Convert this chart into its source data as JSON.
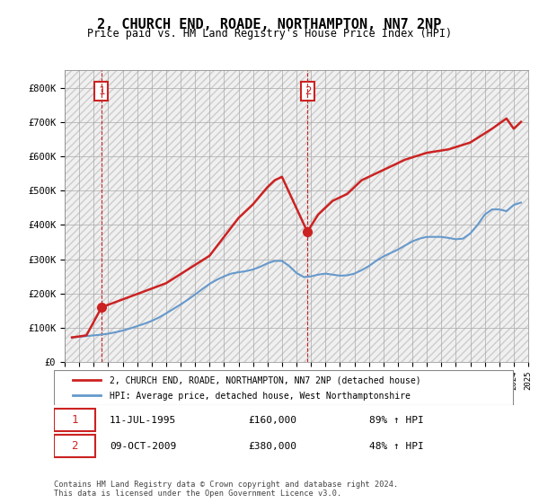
{
  "title": "2, CHURCH END, ROADE, NORTHAMPTON, NN7 2NP",
  "subtitle": "Price paid vs. HM Land Registry's House Price Index (HPI)",
  "ylabel": "",
  "ylim": [
    0,
    850000
  ],
  "yticks": [
    0,
    100000,
    200000,
    300000,
    400000,
    500000,
    600000,
    700000,
    800000
  ],
  "ytick_labels": [
    "£0",
    "£100K",
    "£200K",
    "£300K",
    "£400K",
    "£500K",
    "£600K",
    "£700K",
    "£800K"
  ],
  "hpi_color": "#6699cc",
  "price_color": "#cc2222",
  "bg_color": "#f5f5f5",
  "grid_color": "#cccccc",
  "transaction1_date": "1995-07-11",
  "transaction1_price": 160000,
  "transaction1_label": "1",
  "transaction1_pct": "89% ↑ HPI",
  "transaction2_date": "2009-10-09",
  "transaction2_price": 380000,
  "transaction2_label": "2",
  "transaction2_pct": "48% ↑ HPI",
  "legend_price_label": "2, CHURCH END, ROADE, NORTHAMPTON, NN7 2NP (detached house)",
  "legend_hpi_label": "HPI: Average price, detached house, West Northamptonshire",
  "footer": "Contains HM Land Registry data © Crown copyright and database right 2024.\nThis data is licensed under the Open Government Licence v3.0.",
  "note1_date_str": "11-JUL-1995",
  "note1_price_str": "£160,000",
  "note1_pct_str": "89% ↑ HPI",
  "note2_date_str": "09-OCT-2009",
  "note2_price_str": "£380,000",
  "note2_pct_str": "48% ↑ HPI",
  "hpi_x": [
    1993.5,
    1994.0,
    1994.5,
    1995.0,
    1995.5,
    1996.0,
    1996.5,
    1997.0,
    1997.5,
    1998.0,
    1998.5,
    1999.0,
    1999.5,
    2000.0,
    2000.5,
    2001.0,
    2001.5,
    2002.0,
    2002.5,
    2003.0,
    2003.5,
    2004.0,
    2004.5,
    2005.0,
    2005.5,
    2006.0,
    2006.5,
    2007.0,
    2007.5,
    2008.0,
    2008.5,
    2009.0,
    2009.5,
    2010.0,
    2010.5,
    2011.0,
    2011.5,
    2012.0,
    2012.5,
    2013.0,
    2013.5,
    2014.0,
    2014.5,
    2015.0,
    2015.5,
    2016.0,
    2016.5,
    2017.0,
    2017.5,
    2018.0,
    2018.5,
    2019.0,
    2019.5,
    2020.0,
    2020.5,
    2021.0,
    2021.5,
    2022.0,
    2022.5,
    2023.0,
    2023.5,
    2024.0,
    2024.5
  ],
  "hpi_y": [
    72000,
    74000,
    76000,
    78000,
    80000,
    83000,
    87000,
    92000,
    98000,
    105000,
    112000,
    120000,
    130000,
    142000,
    155000,
    168000,
    182000,
    197000,
    213000,
    228000,
    240000,
    250000,
    258000,
    262000,
    265000,
    270000,
    278000,
    288000,
    295000,
    295000,
    280000,
    260000,
    248000,
    250000,
    255000,
    258000,
    255000,
    252000,
    253000,
    258000,
    268000,
    280000,
    295000,
    308000,
    318000,
    328000,
    340000,
    352000,
    360000,
    365000,
    365000,
    365000,
    362000,
    358000,
    360000,
    375000,
    400000,
    430000,
    445000,
    445000,
    440000,
    458000,
    465000
  ],
  "price_x": [
    1993.5,
    1994.5,
    1995.55,
    2000.0,
    2003.0,
    2005.0,
    2006.0,
    2007.0,
    2007.5,
    2008.0,
    2009.75,
    2010.5,
    2011.5,
    2012.5,
    2013.5,
    2015.0,
    2016.5,
    2018.0,
    2019.5,
    2021.0,
    2022.5,
    2023.5,
    2024.0,
    2024.5
  ],
  "price_y": [
    72000,
    78000,
    160000,
    230000,
    310000,
    420000,
    460000,
    510000,
    530000,
    540000,
    380000,
    430000,
    470000,
    490000,
    530000,
    560000,
    590000,
    610000,
    620000,
    640000,
    680000,
    710000,
    680000,
    700000
  ]
}
